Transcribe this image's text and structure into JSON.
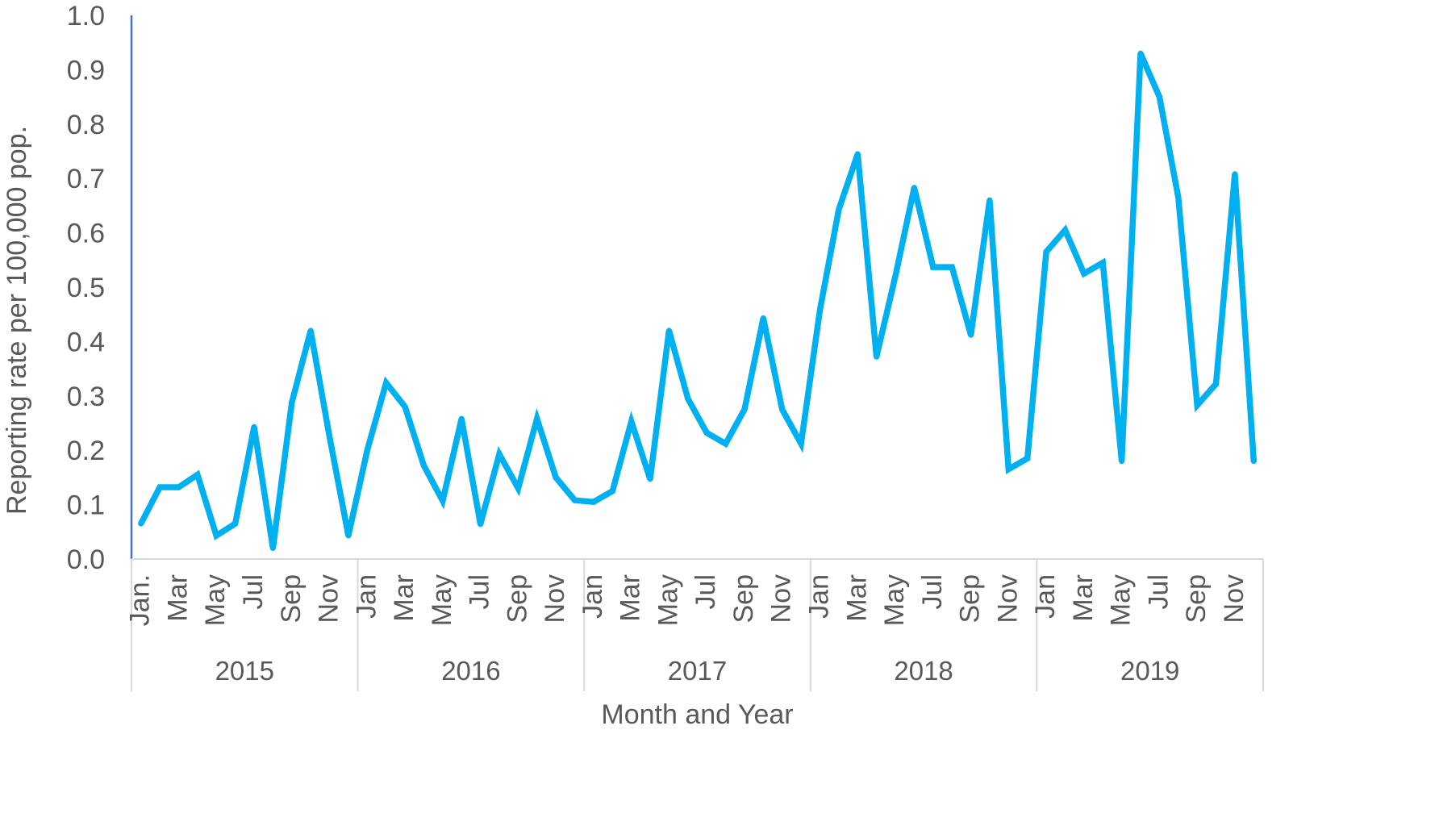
{
  "chart_data": {
    "type": "line",
    "xlabel": "Month and Year",
    "ylabel": "Reporting rate per 100,000 pop.",
    "ylim": [
      0,
      1.0
    ],
    "yticks": [
      "0.0",
      "0.1",
      "0.2",
      "0.3",
      "0.4",
      "0.5",
      "0.6",
      "0.7",
      "0.8",
      "0.9",
      "1.0"
    ],
    "grid": false,
    "legend": "none",
    "line_color": "#00B0F0",
    "axis_color": "#4472C4",
    "month_tick_labels": [
      "Jan.",
      "Mar",
      "May",
      "Jul",
      "Sep",
      "Nov",
      "Jan",
      "Mar",
      "May",
      "Jul",
      "Sep",
      "Nov",
      "Jan",
      "Mar",
      "May",
      "Jul",
      "Sep",
      "Nov",
      "Jan",
      "Mar",
      "May",
      "Jul",
      "Sep",
      "Nov",
      "Jan",
      "Mar",
      "May",
      "Jul",
      "Sep",
      "Nov"
    ],
    "years": [
      "2015",
      "2016",
      "2017",
      "2018",
      "2019"
    ],
    "series": [
      {
        "values": [
          0.065,
          0.132,
          0.132,
          0.155,
          0.043,
          0.065,
          0.243,
          0.02,
          0.288,
          0.42,
          0.225,
          0.043,
          0.2,
          0.324,
          0.28,
          0.172,
          0.107,
          0.258,
          0.064,
          0.193,
          0.13,
          0.258,
          0.15,
          0.108,
          0.105,
          0.125,
          0.253,
          0.147,
          0.42,
          0.295,
          0.232,
          0.212,
          0.275,
          0.443,
          0.275,
          0.212,
          0.458,
          0.643,
          0.745,
          0.372,
          0.52,
          0.683,
          0.537,
          0.537,
          0.412,
          0.66,
          0.165,
          0.185,
          0.565,
          0.605,
          0.525,
          0.545,
          0.18,
          0.93,
          0.85,
          0.665,
          0.283,
          0.322,
          0.708,
          0.18
        ]
      }
    ]
  }
}
